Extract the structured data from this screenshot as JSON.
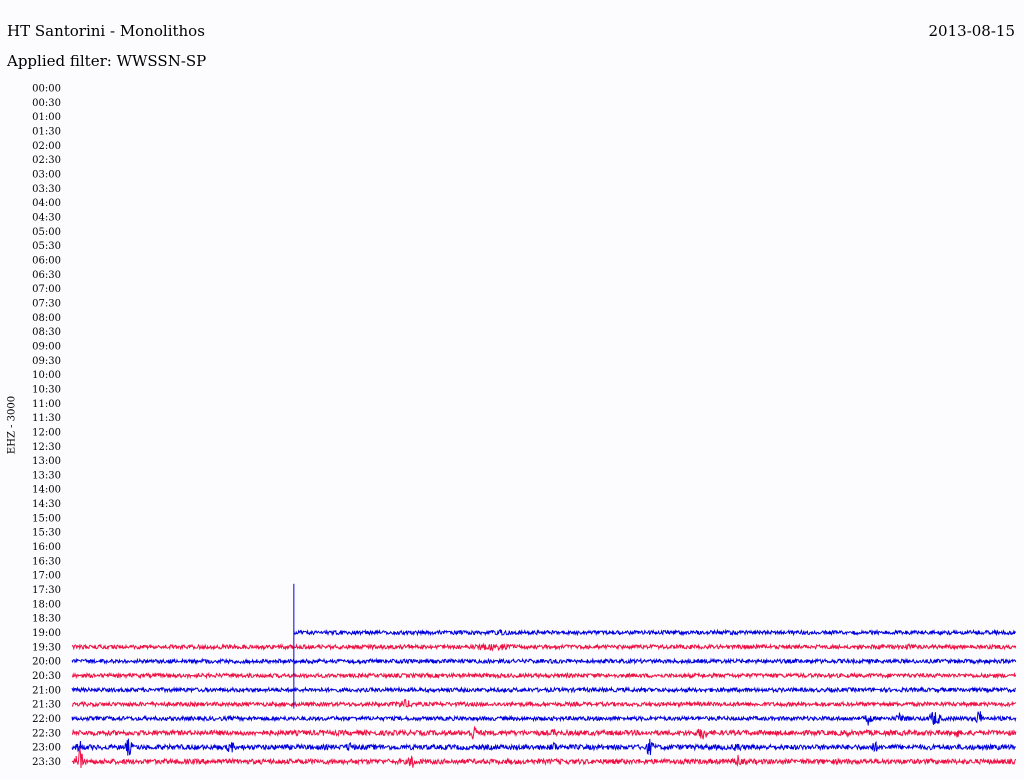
{
  "header": {
    "station": "HT Santorini - Monolithos",
    "date": "2013-08-15",
    "filter": "Applied filter: WWSSN-SP"
  },
  "channel_label": "EHZ - 3000",
  "colors": {
    "background": "#fcfcfe",
    "trace_a": "#0000dd",
    "trace_b": "#ee1144"
  },
  "chart_data": {
    "type": "line",
    "title": "HT Santorini - Monolithos",
    "ylabel": "EHZ - 3000",
    "y_tick_labels": [
      "00:00",
      "00:30",
      "01:00",
      "01:30",
      "02:00",
      "02:30",
      "03:00",
      "03:30",
      "04:00",
      "04:30",
      "05:00",
      "05:30",
      "06:00",
      "06:30",
      "07:00",
      "07:30",
      "08:00",
      "08:30",
      "09:00",
      "09:30",
      "10:00",
      "10:30",
      "11:00",
      "11:30",
      "12:00",
      "12:30",
      "13:00",
      "13:30",
      "14:00",
      "14:30",
      "15:00",
      "15:30",
      "16:00",
      "16:30",
      "17:00",
      "17:30",
      "18:00",
      "18:30",
      "19:00",
      "19:30",
      "20:00",
      "20:30",
      "21:00",
      "21:30",
      "22:00",
      "22:30",
      "23:00",
      "23:30"
    ],
    "row_minutes": 30,
    "data_start_time": "18:57",
    "rows_with_data": [
      {
        "time": "19:00",
        "color": "blue",
        "start_fraction": 0.235,
        "amplitude": 2.0,
        "events": [
          {
            "at": 0.457,
            "amp": 3.5,
            "len": 0.02
          }
        ]
      },
      {
        "time": "19:30",
        "color": "red",
        "start_fraction": 0.0,
        "amplitude": 2.0,
        "events": [
          {
            "at": 0.447,
            "amp": 4.0,
            "len": 0.05
          },
          {
            "at": 0.888,
            "amp": 3.0,
            "len": 0.03
          }
        ]
      },
      {
        "time": "20:00",
        "color": "blue",
        "start_fraction": 0.0,
        "amplitude": 2.0,
        "events": []
      },
      {
        "time": "20:30",
        "color": "red",
        "start_fraction": 0.0,
        "amplitude": 2.0,
        "events": []
      },
      {
        "time": "21:00",
        "color": "blue",
        "start_fraction": 0.0,
        "amplitude": 2.0,
        "events": []
      },
      {
        "time": "21:30",
        "color": "red",
        "start_fraction": 0.0,
        "amplitude": 2.0,
        "events": [
          {
            "at": 0.352,
            "amp": 5.0,
            "len": 0.02
          }
        ]
      },
      {
        "time": "22:00",
        "color": "blue",
        "start_fraction": 0.0,
        "amplitude": 2.0,
        "events": [
          {
            "at": 0.844,
            "amp": 8.0,
            "len": 0.006
          },
          {
            "at": 0.878,
            "amp": 6.0,
            "len": 0.01
          },
          {
            "at": 0.914,
            "amp": 9.0,
            "len": 0.01
          },
          {
            "at": 0.961,
            "amp": 10.0,
            "len": 0.006
          }
        ]
      },
      {
        "time": "22:30",
        "color": "red",
        "start_fraction": 0.0,
        "amplitude": 2.5,
        "events": [
          {
            "at": 0.265,
            "amp": 4.0,
            "len": 0.006
          },
          {
            "at": 0.425,
            "amp": 9.0,
            "len": 0.008
          },
          {
            "at": 0.51,
            "amp": 5.0,
            "len": 0.006
          },
          {
            "at": 0.668,
            "amp": 9.0,
            "len": 0.008
          },
          {
            "at": 0.82,
            "amp": 5.0,
            "len": 0.006
          },
          {
            "at": 0.937,
            "amp": 6.0,
            "len": 0.006
          }
        ]
      },
      {
        "time": "23:00",
        "color": "blue",
        "start_fraction": 0.0,
        "amplitude": 2.5,
        "events": [
          {
            "at": 0.008,
            "amp": 8.0,
            "len": 0.006
          },
          {
            "at": 0.06,
            "amp": 10.0,
            "len": 0.006
          },
          {
            "at": 0.168,
            "amp": 8.0,
            "len": 0.006
          },
          {
            "at": 0.294,
            "amp": 7.0,
            "len": 0.006
          },
          {
            "at": 0.51,
            "amp": 7.0,
            "len": 0.006
          },
          {
            "at": 0.612,
            "amp": 9.0,
            "len": 0.008
          },
          {
            "at": 0.705,
            "amp": 7.0,
            "len": 0.006
          },
          {
            "at": 0.85,
            "amp": 7.0,
            "len": 0.006
          }
        ]
      },
      {
        "time": "23:30",
        "color": "red",
        "start_fraction": 0.0,
        "amplitude": 2.5,
        "events": [
          {
            "at": 0.008,
            "amp": 15.0,
            "len": 0.006
          },
          {
            "at": 0.36,
            "amp": 9.0,
            "len": 0.006
          },
          {
            "at": 0.705,
            "amp": 8.0,
            "len": 0.006
          }
        ]
      }
    ],
    "spike": {
      "time": "18:57",
      "row": "19:00",
      "up_rows": 3.4,
      "down_rows": 5.3
    }
  }
}
